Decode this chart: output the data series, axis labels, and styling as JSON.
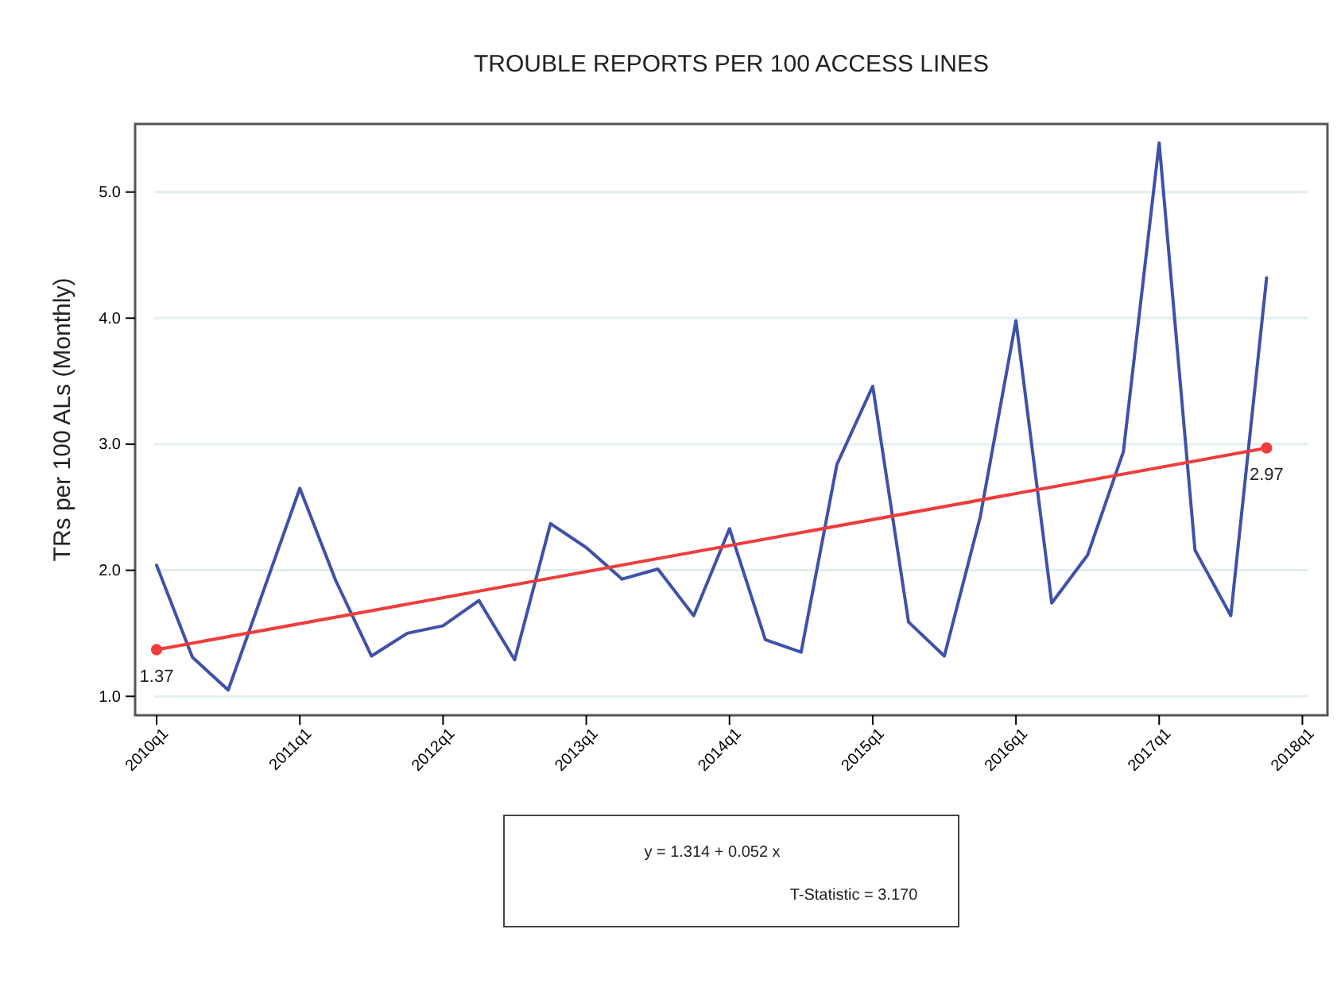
{
  "chart_data": {
    "type": "line",
    "title": "TROUBLE REPORTS PER 100 ACCESS LINES",
    "ylabel": "TRs per 100 ALs (Monthly)",
    "categories": [
      "2010q1",
      null,
      null,
      null,
      "2011q1",
      null,
      null,
      null,
      "2012q1",
      null,
      null,
      null,
      "2013q1",
      null,
      null,
      null,
      "2014q1",
      null,
      null,
      null,
      "2015q1",
      null,
      null,
      null,
      "2016q1",
      null,
      null,
      null,
      "2017q1",
      null,
      null,
      null,
      "2018q1"
    ],
    "ylim": [
      0.85,
      5.54
    ],
    "yticks": [
      {
        "value": 1,
        "label": "1.0"
      },
      {
        "value": 2,
        "label": "2.0"
      },
      {
        "value": 3,
        "label": "3.0"
      },
      {
        "value": 4,
        "label": "4.0"
      },
      {
        "value": 5,
        "label": "5.0"
      }
    ],
    "grid": "y",
    "series": [
      {
        "color": "#3f51a8",
        "marker": "none",
        "values": [
          2.04,
          1.31,
          1.05,
          1.85,
          2.65,
          1.92,
          1.32,
          1.5,
          1.56,
          1.76,
          1.29,
          2.37,
          2.18,
          1.93,
          2.01,
          1.64,
          2.33,
          1.45,
          1.35,
          2.84,
          3.46,
          1.59,
          1.32,
          2.42,
          3.98,
          1.74,
          2.12,
          2.94,
          5.39,
          2.16,
          1.64,
          4.32,
          null
        ]
      },
      {
        "color": "#f03c3c",
        "marker": "circle",
        "values": [
          1.37,
          null,
          null,
          null,
          null,
          null,
          null,
          null,
          null,
          null,
          null,
          null,
          null,
          null,
          null,
          null,
          null,
          null,
          null,
          null,
          null,
          null,
          null,
          null,
          null,
          null,
          null,
          null,
          null,
          null,
          null,
          2.97,
          null
        ],
        "value_labels": [
          "1.37",
          null,
          null,
          null,
          null,
          null,
          null,
          null,
          null,
          null,
          null,
          null,
          null,
          null,
          null,
          null,
          null,
          null,
          null,
          null,
          null,
          null,
          null,
          null,
          null,
          null,
          null,
          null,
          null,
          null,
          null,
          "2.97",
          null
        ]
      }
    ],
    "annotations": [
      "y = 1.314 + 0.052 x",
      "T-Statistic = 3.170"
    ]
  }
}
